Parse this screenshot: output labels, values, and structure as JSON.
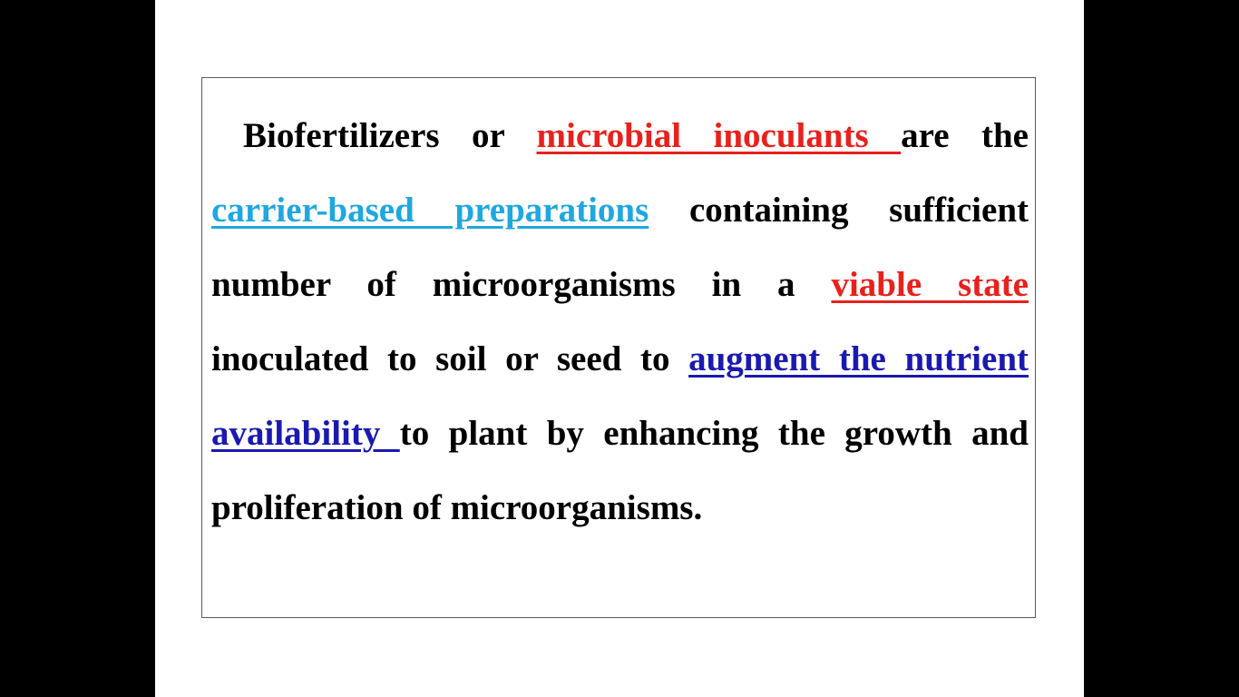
{
  "paragraph": {
    "t1": "Biofertilizers or ",
    "h1": "microbial inoculants ",
    "t2": "are the ",
    "h2": "carrier-based preparations",
    "t3": " containing sufficient number of microorganisms in a ",
    "h3": "viable state ",
    "t4": "inoculated to soil or seed to ",
    "h4": "augment the nutrient availability ",
    "t5": "to plant by enhancing the growth and proliferation of microorganisms."
  },
  "colors": {
    "background": "#000000",
    "slide": "#ffffff",
    "text": "#000000",
    "red_highlight": "#e8211c",
    "cyan_highlight": "#1ea7e0",
    "blue_highlight": "#1a19b0"
  }
}
